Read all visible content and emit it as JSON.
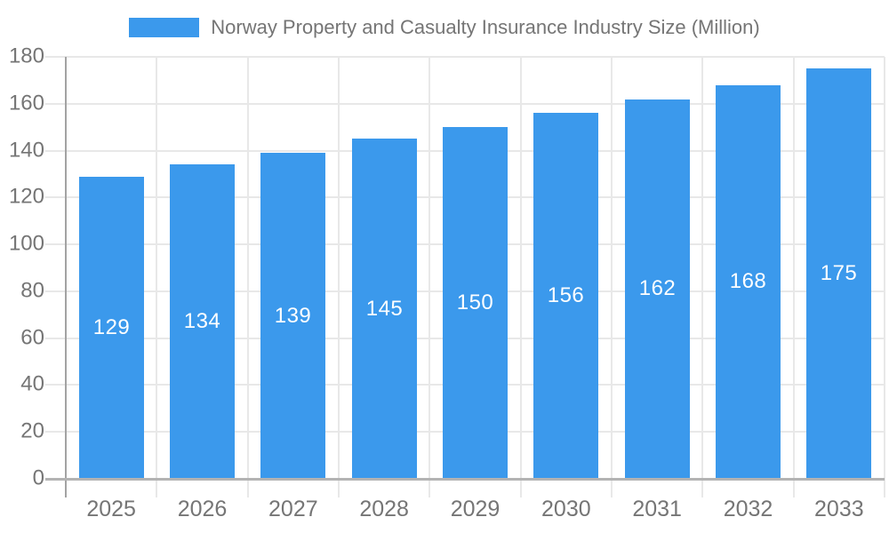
{
  "chart_data": {
    "type": "bar",
    "title": "Norway Property and Casualty Insurance Industry Size (Million)",
    "categories": [
      "2025",
      "2026",
      "2027",
      "2028",
      "2029",
      "2030",
      "2031",
      "2032",
      "2033"
    ],
    "values": [
      129,
      134,
      139,
      145,
      150,
      156,
      162,
      168,
      175
    ],
    "xlabel": "",
    "ylabel": "",
    "ylim": [
      0,
      180
    ],
    "ytick_step": 20,
    "yticks": [
      0,
      20,
      40,
      60,
      80,
      100,
      120,
      140,
      160,
      180
    ],
    "grid": "on",
    "legend_position": "top-center",
    "bar_labels_position": "inside-center",
    "colors": {
      "bar_fill": "#3B99EC",
      "bar_label_text": "#FFFFFF",
      "axis_text": "#757575",
      "legend_text": "#757575",
      "gridline": "#E8E8E8",
      "y_axis_line": "#A3A3A3",
      "baseline": "#B3B3B3",
      "background": "#FFFFFF"
    }
  }
}
